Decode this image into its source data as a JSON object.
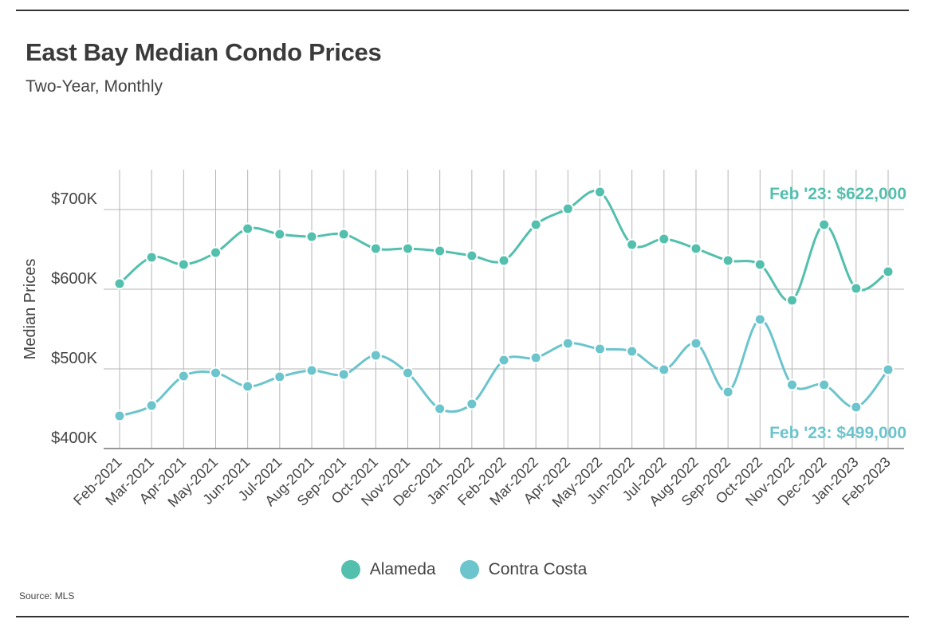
{
  "header": {
    "title": "East Bay Median Condo Prices",
    "subtitle": "Two-Year, Monthly"
  },
  "source": "Source:  MLS",
  "colors": {
    "alameda": "#53bfad",
    "contra_costa": "#6cc4cc",
    "grid": "#b5b5b5",
    "axis": "#777777"
  },
  "chart_data": {
    "type": "line",
    "title": "East Bay Median Condo Prices",
    "subtitle": "Two-Year, Monthly",
    "xlabel": "",
    "ylabel": "Median Prices",
    "ylim": [
      400000,
      750000
    ],
    "yticks": [
      400000,
      500000,
      600000,
      700000
    ],
    "ytick_labels": [
      "$400K",
      "$500K",
      "$600K",
      "$700K"
    ],
    "grid": true,
    "legend": "bottom-center",
    "categories": [
      "Feb-2021",
      "Mar-2021",
      "Apr-2021",
      "May-2021",
      "Jun-2021",
      "Jul-2021",
      "Aug-2021",
      "Sep-2021",
      "Oct-2021",
      "Nov-2021",
      "Dec-2021",
      "Jan-2022",
      "Feb-2022",
      "Mar-2022",
      "Apr-2022",
      "May-2022",
      "Jun-2022",
      "Jul-2022",
      "Aug-2022",
      "Sep-2022",
      "Oct-2022",
      "Nov-2022",
      "Dec-2022",
      "Jan-2023",
      "Feb-2023"
    ],
    "series": [
      {
        "name": "Alameda",
        "color": "#53bfad",
        "values": [
          607000,
          640000,
          631000,
          646000,
          676000,
          669000,
          666000,
          669000,
          651000,
          651000,
          648000,
          642000,
          636000,
          681000,
          701000,
          722000,
          656000,
          663000,
          651000,
          636000,
          631000,
          586000,
          681000,
          601000,
          622000
        ],
        "annotation": "Feb '23: $622,000"
      },
      {
        "name": "Contra Costa",
        "color": "#6cc4cc",
        "values": [
          441000,
          454000,
          491000,
          495000,
          478000,
          490000,
          498000,
          493000,
          517000,
          495000,
          450000,
          456000,
          511000,
          514000,
          532000,
          525000,
          522000,
          499000,
          532000,
          471000,
          562000,
          480000,
          480000,
          452000,
          499000
        ],
        "annotation": "Feb '23: $499,000"
      }
    ]
  }
}
